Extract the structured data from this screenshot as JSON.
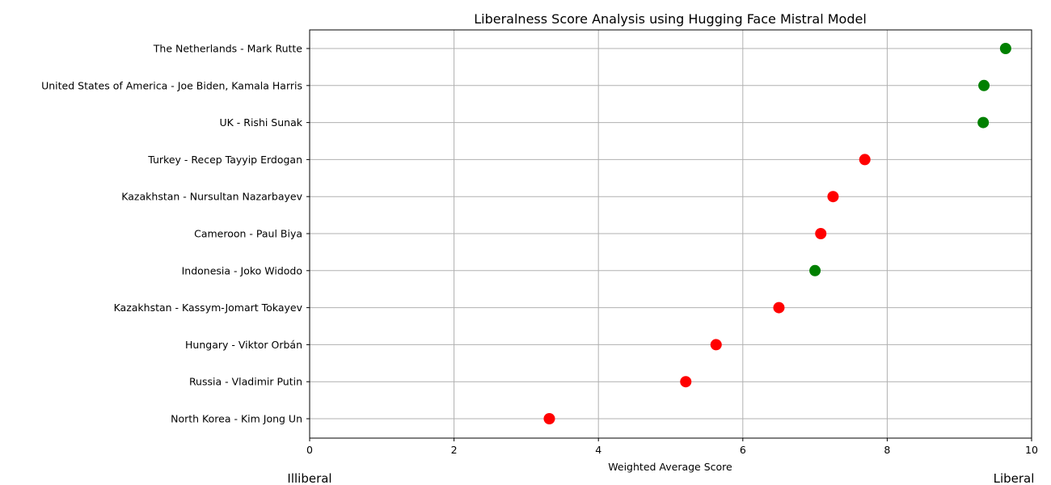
{
  "chart_data": {
    "type": "scatter",
    "title": "Liberalness Score Analysis using Hugging Face Mistral Model",
    "xlabel": "Weighted Average Score",
    "ylabel": "",
    "xlim": [
      0,
      10
    ],
    "xticks": [
      "0",
      "2",
      "4",
      "6",
      "8",
      "10"
    ],
    "grid": true,
    "end_labels": {
      "left": "Illiberal",
      "right": "Liberal"
    },
    "colors": {
      "green": "#008000",
      "red": "#ff0000"
    },
    "points": [
      {
        "label": "The Netherlands - Mark Rutte",
        "value": 9.64,
        "color": "green"
      },
      {
        "label": "United States of America - Joe Biden, Kamala Harris",
        "value": 9.34,
        "color": "green"
      },
      {
        "label": "UK - Rishi Sunak",
        "value": 9.33,
        "color": "green"
      },
      {
        "label": "Turkey - Recep Tayyip Erdogan",
        "value": 7.69,
        "color": "red"
      },
      {
        "label": "Kazakhstan - Nursultan Nazarbayev",
        "value": 7.25,
        "color": "red"
      },
      {
        "label": "Cameroon - Paul Biya",
        "value": 7.08,
        "color": "red"
      },
      {
        "label": "Indonesia - Joko Widodo",
        "value": 7.0,
        "color": "green"
      },
      {
        "label": "Kazakhstan - Kassym-Jomart Tokayev",
        "value": 6.5,
        "color": "red"
      },
      {
        "label": "Hungary - Viktor Orbán",
        "value": 5.63,
        "color": "red"
      },
      {
        "label": "Russia - Vladimir Putin",
        "value": 5.21,
        "color": "red"
      },
      {
        "label": "North Korea - Kim Jong Un",
        "value": 3.32,
        "color": "red"
      }
    ]
  }
}
